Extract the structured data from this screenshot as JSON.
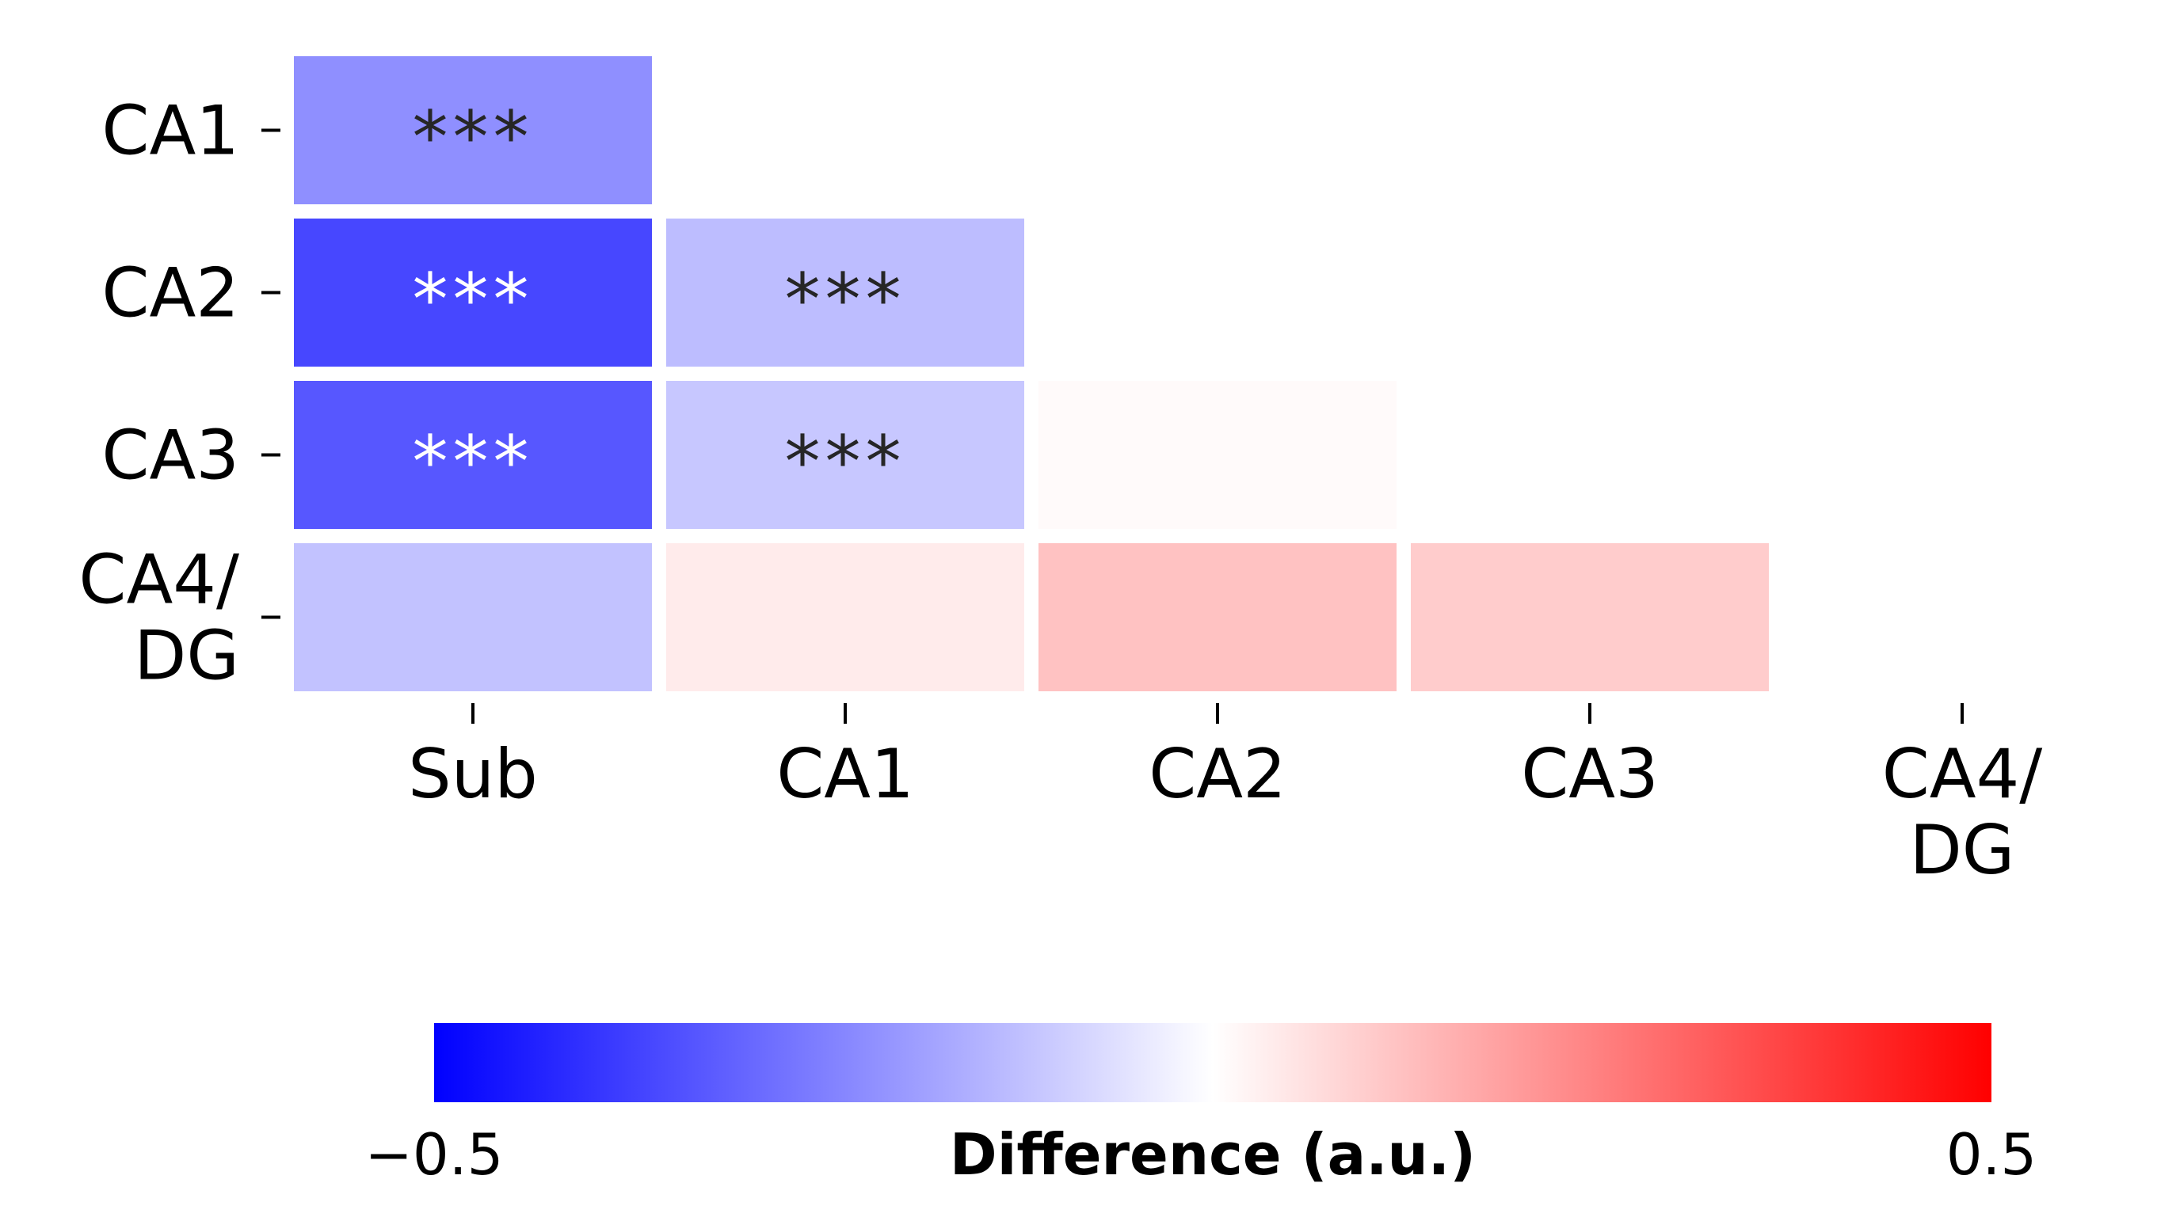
{
  "chart_data": {
    "type": "heatmap",
    "rows": [
      "CA1",
      "CA2",
      "CA3",
      "CA4/\nDG"
    ],
    "columns": [
      "Sub",
      "CA1",
      "CA2",
      "CA3",
      "CA4/\nDG"
    ],
    "values": [
      [
        -0.22,
        0.0,
        0.0,
        0.0,
        0.0
      ],
      [
        -0.36,
        -0.13,
        0.0,
        0.0,
        0.0
      ],
      [
        -0.33,
        -0.11,
        0.01,
        0.0,
        0.0
      ],
      [
        -0.12,
        0.04,
        0.12,
        0.1,
        0.0
      ]
    ],
    "annotations": [
      [
        "***",
        "",
        "",
        "",
        ""
      ],
      [
        "***",
        "***",
        "",
        "",
        ""
      ],
      [
        "***",
        "***",
        "",
        "",
        ""
      ],
      [
        "",
        "",
        "",
        "",
        ""
      ]
    ],
    "colorbar": {
      "colormap": "bwr",
      "vmin": -0.5,
      "vmax": 0.5,
      "min_label": "−0.5",
      "max_label": "0.5",
      "title": "Difference (a.u.)",
      "orientation": "horizontal",
      "placement": "bottom"
    },
    "colors": {
      "low": "#0000ff",
      "mid": "#ffffff",
      "high": "#ff0000",
      "annot_dark": "#262626",
      "annot_light": "#ffffff"
    }
  }
}
